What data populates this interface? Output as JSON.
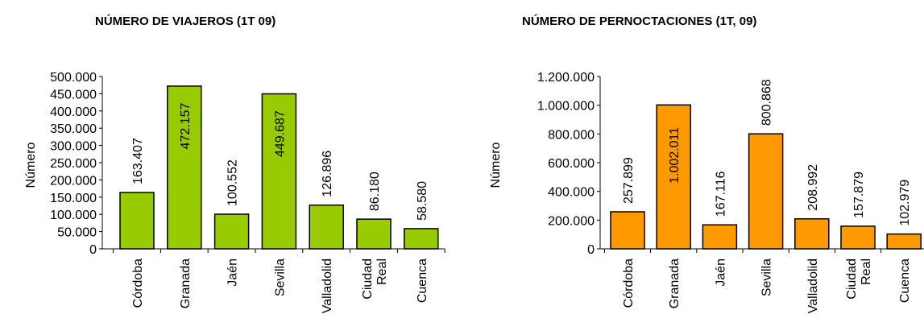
{
  "chart_data": [
    {
      "type": "bar",
      "title": "NÚMERO DE VIAJEROS (1T 09)",
      "ylabel": "Número",
      "xlabel": "",
      "categories": [
        [
          "Córdoba"
        ],
        [
          "Granada"
        ],
        [
          "Jaén"
        ],
        [
          "Sevilla"
        ],
        [
          "Valladolid"
        ],
        [
          "Ciudad",
          "Real"
        ],
        [
          "Cuenca"
        ]
      ],
      "values": [
        163407,
        472157,
        100552,
        449687,
        126896,
        86180,
        58580
      ],
      "value_labels": [
        "163.407",
        "472.157",
        "100.552",
        "449.687",
        "126.896",
        "86.180",
        "58.580"
      ],
      "yticks": [
        "0",
        "50.000",
        "100.000",
        "150.000",
        "200.000",
        "250.000",
        "300.000",
        "350.000",
        "400.000",
        "450.000",
        "500.000"
      ],
      "ylim": [
        0,
        500000
      ],
      "grid": false,
      "legend": "none",
      "bar_color": "#99cc00"
    },
    {
      "type": "bar",
      "title": "NÚMERO DE PERNOCTACIONES (1T, 09)",
      "ylabel": "Número",
      "xlabel": "",
      "categories": [
        [
          "Córdoba"
        ],
        [
          "Granada"
        ],
        [
          "Jaén"
        ],
        [
          "Sevilla"
        ],
        [
          "Valladolid"
        ],
        [
          "Ciudad",
          "Real"
        ],
        [
          "Cuenca"
        ]
      ],
      "values": [
        257899,
        1002011,
        167116,
        800868,
        208992,
        157879,
        102979
      ],
      "value_labels": [
        "257.899",
        "1.002.011",
        "167.116",
        "800.868",
        "208.992",
        "157.879",
        "102.979"
      ],
      "yticks": [
        "0",
        "200.000",
        "400.000",
        "600.000",
        "800.000",
        "1.000.000",
        "1.200.000"
      ],
      "ylim": [
        0,
        1200000
      ],
      "grid": false,
      "legend": "none",
      "bar_color": "#ff9900"
    }
  ]
}
